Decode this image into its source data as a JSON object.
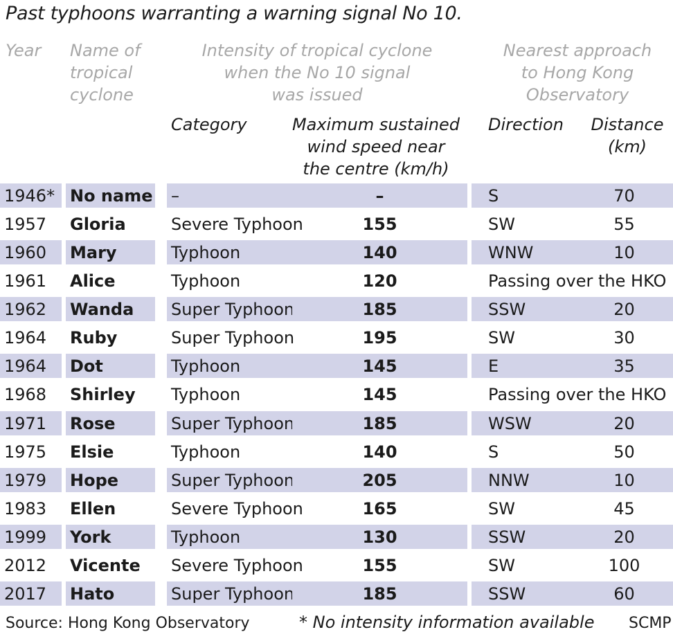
{
  "title": "Past typhoons warranting a warning signal No 10.",
  "headers": {
    "year": "Year",
    "name": [
      "Name of",
      "tropical",
      "cyclone"
    ],
    "intensity": [
      "Intensity of tropical cyclone",
      "when the No 10 signal",
      "was issued"
    ],
    "approach": [
      "Nearest approach",
      "to Hong Kong",
      "Observatory"
    ],
    "category": "Category",
    "wind": [
      "Maximum sustained",
      "wind speed near",
      "the centre (km/h)"
    ],
    "direction": "Direction",
    "distance": [
      "Distance",
      "(km)"
    ]
  },
  "rows": [
    {
      "year": "1946*",
      "name": "No name",
      "category": "–",
      "wind": "–",
      "direction": "S",
      "distance": "70",
      "shaded": true
    },
    {
      "year": "1957",
      "name": "Gloria",
      "category": "Severe Typhoon",
      "wind": "155",
      "direction": "SW",
      "distance": "55",
      "shaded": false
    },
    {
      "year": "1960",
      "name": "Mary",
      "category": "Typhoon",
      "wind": "140",
      "direction": "WNW",
      "distance": "10",
      "shaded": true
    },
    {
      "year": "1961",
      "name": "Alice",
      "category": "Typhoon",
      "wind": "120",
      "passing": "Passing over the HKO",
      "shaded": false
    },
    {
      "year": "1962",
      "name": "Wanda",
      "category": "Super Typhoon",
      "wind": "185",
      "direction": "SSW",
      "distance": "20",
      "shaded": true
    },
    {
      "year": "1964",
      "name": "Ruby",
      "category": "Super Typhoon",
      "wind": "195",
      "direction": "SW",
      "distance": "30",
      "shaded": false
    },
    {
      "year": "1964",
      "name": "Dot",
      "category": "Typhoon",
      "wind": "145",
      "direction": "E",
      "distance": "35",
      "shaded": true
    },
    {
      "year": "1968",
      "name": "Shirley",
      "category": "Typhoon",
      "wind": "145",
      "passing": "Passing over the HKO",
      "shaded": false
    },
    {
      "year": "1971",
      "name": "Rose",
      "category": "Super Typhoon",
      "wind": "185",
      "direction": "WSW",
      "distance": "20",
      "shaded": true
    },
    {
      "year": "1975",
      "name": "Elsie",
      "category": "Typhoon",
      "wind": "140",
      "direction": "S",
      "distance": "50",
      "shaded": false
    },
    {
      "year": "1979",
      "name": "Hope",
      "category": "Super Typhoon",
      "wind": "205",
      "direction": "NNW",
      "distance": "10",
      "shaded": true
    },
    {
      "year": "1983",
      "name": "Ellen",
      "category": "Severe Typhoon",
      "wind": "165",
      "direction": "SW",
      "distance": "45",
      "shaded": false
    },
    {
      "year": "1999",
      "name": "York",
      "category": "Typhoon",
      "wind": "130",
      "direction": "SSW",
      "distance": "20",
      "shaded": true
    },
    {
      "year": "2012",
      "name": "Vicente",
      "category": "Severe Typhoon",
      "wind": "155",
      "direction": "SW",
      "distance": "100",
      "shaded": false
    },
    {
      "year": "2017",
      "name": "Hato",
      "category": "Super Typhoon",
      "wind": "185",
      "direction": "SSW",
      "distance": "60",
      "shaded": true
    }
  ],
  "footer": {
    "source": "Source: Hong Kong Observatory",
    "note": "* No intensity information available",
    "credit": "SCMP"
  },
  "colors": {
    "shade": "#d2d3e8",
    "header_grey": "#a7a7a7",
    "text": "#1a1a1a"
  }
}
